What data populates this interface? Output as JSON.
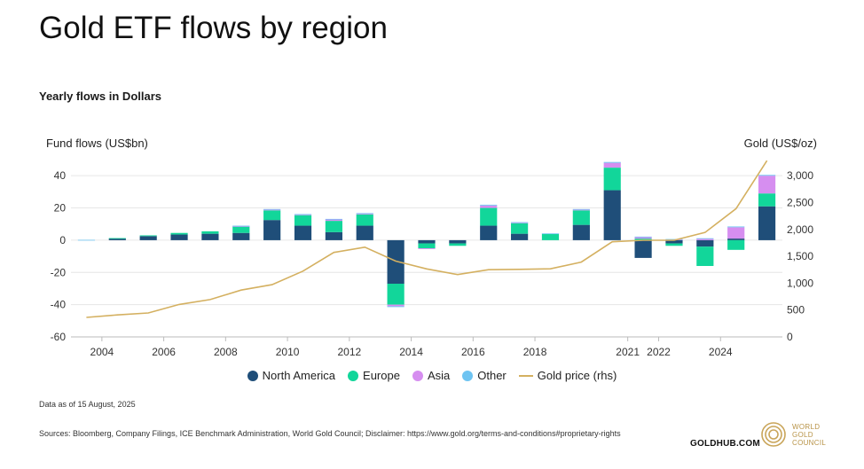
{
  "title": "Gold ETF flows by region",
  "subtitle": "Yearly flows in Dollars",
  "note": "Data as of 15 August, 2025",
  "sources": "Sources: Bloomberg, Company Filings, ICE Benchmark Administration, World Gold Council; Disclaimer: https://www.gold.org/terms-and-conditions#proprietary-rights",
  "branding": {
    "site": "GOLDHUB.COM",
    "logo_text": "WORLD GOLD COUNCIL"
  },
  "colors": {
    "north_america": "#1f4e79",
    "europe": "#12d69a",
    "asia": "#d68ef0",
    "other": "#6ec4f2",
    "gold_price": "#d4b060",
    "grid": "#e6e6e6",
    "axis_text": "#333333"
  },
  "chart_data": {
    "type": "bar",
    "stacked": true,
    "ylabel": "Fund flows (US$bn)",
    "y2label": "Gold (US$/oz)",
    "ylim": [
      -60,
      50
    ],
    "y2lim": [
      0,
      3300
    ],
    "yticks": [
      -60,
      -40,
      -20,
      0,
      20,
      40
    ],
    "y2ticks": [
      0,
      500,
      1000,
      1500,
      2000,
      2500,
      3000
    ],
    "y2tick_labels": [
      "0",
      "500",
      "1,000",
      "1,500",
      "2,000",
      "2,500",
      "3,000"
    ],
    "x": [
      "2003",
      "2004",
      "2005",
      "2006",
      "2007",
      "2008",
      "2009",
      "2010",
      "2011",
      "2012",
      "2013",
      "2014",
      "2015",
      "2016",
      "2017",
      "2018",
      "2019",
      "2020",
      "2021",
      "2022",
      "2023",
      "2024",
      "2025"
    ],
    "x_tick_labels": [
      "",
      "2004",
      "",
      "2006",
      "",
      "2008",
      "",
      "2010",
      "",
      "2012",
      "",
      "2014",
      "",
      "2016",
      "",
      "2018",
      "",
      "",
      "2021",
      "2022",
      "",
      "2024",
      ""
    ],
    "legend": [
      "North America",
      "Europe",
      "Asia",
      "Other",
      "Gold price (rhs)"
    ],
    "series": [
      {
        "name": "North America",
        "key": "north_america",
        "values": [
          0,
          1,
          2.5,
          3.5,
          4,
          4.5,
          12.5,
          9,
          5,
          9,
          -27,
          -2,
          -2,
          9,
          4,
          0,
          9.5,
          31,
          -11,
          -2,
          -4,
          1,
          21
        ]
      },
      {
        "name": "Europe",
        "key": "europe",
        "values": [
          0,
          0.3,
          0.5,
          1,
          1.5,
          4,
          6,
          6.5,
          7,
          7,
          -13,
          -3,
          -1.5,
          11,
          6.5,
          4,
          9,
          14,
          1,
          -1.5,
          -12,
          -6,
          8
        ]
      },
      {
        "name": "Asia",
        "key": "asia",
        "values": [
          0,
          0,
          0,
          0,
          0,
          0.2,
          0.5,
          0.5,
          1,
          0.5,
          -1,
          -0.5,
          0,
          1.5,
          0.5,
          0,
          0.5,
          3,
          1,
          0.5,
          1,
          7,
          11
        ]
      },
      {
        "name": "Other",
        "key": "other",
        "values": [
          0.2,
          0,
          0,
          0,
          0,
          0.3,
          0.3,
          0.2,
          0.2,
          0.3,
          -0.5,
          0,
          0,
          0.5,
          0.2,
          0.2,
          0.3,
          0.5,
          0.2,
          0.2,
          0.2,
          0.5,
          0.5
        ]
      }
    ],
    "line": {
      "name": "Gold price (rhs)",
      "axis": "right",
      "values": [
        363,
        409,
        445,
        604,
        695,
        872,
        972,
        1225,
        1572,
        1669,
        1411,
        1266,
        1160,
        1251,
        1257,
        1268,
        1393,
        1770,
        1799,
        1800,
        1943,
        2386,
        3280
      ]
    }
  }
}
